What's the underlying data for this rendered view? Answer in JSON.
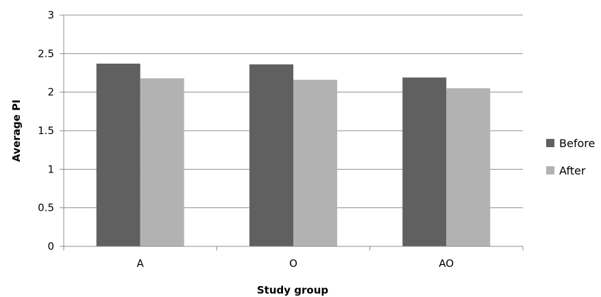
{
  "chart_data": {
    "type": "bar",
    "title": "",
    "xlabel": "Study group",
    "ylabel": "Average PI",
    "categories": [
      "A",
      "O",
      "AO"
    ],
    "series": [
      {
        "name": "Before",
        "values": [
          2.37,
          2.36,
          2.19
        ],
        "color": "#606060"
      },
      {
        "name": "After",
        "values": [
          2.18,
          2.16,
          2.05
        ],
        "color": "#b2b2b2"
      }
    ],
    "ylim": [
      0,
      3
    ],
    "yticks": [
      0,
      0.5,
      1,
      1.5,
      2,
      2.5,
      3
    ],
    "ytick_labels": [
      "0",
      "0.5",
      "1",
      "1.5",
      "2",
      "2.5",
      "3"
    ],
    "grid": true,
    "legend_position": "right"
  }
}
